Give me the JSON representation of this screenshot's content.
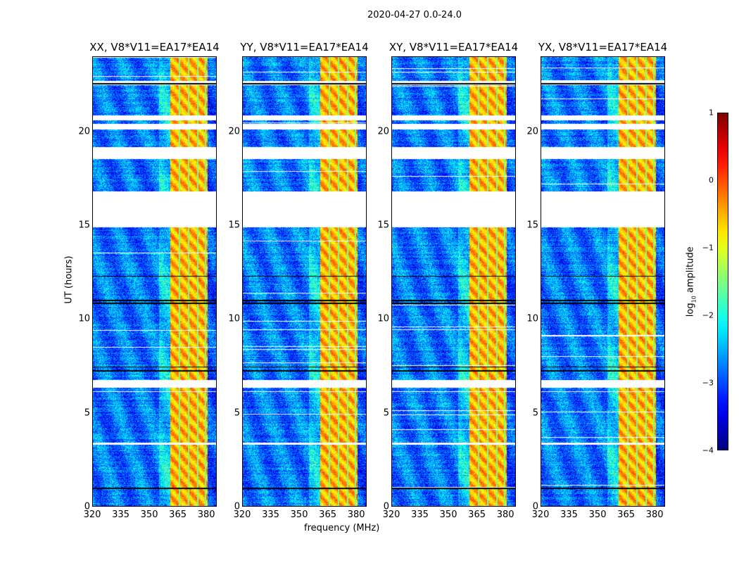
{
  "chart_data": {
    "type": "heatmap",
    "title": "2020-04-27 0.0-24.0",
    "xlabel": "frequency (MHz)",
    "ylabel": "UT (hours)",
    "xlim": [
      320,
      385.5
    ],
    "ylim": [
      0,
      24
    ],
    "xticks": [
      "320",
      "335",
      "350",
      "365",
      "380"
    ],
    "xtick_values": [
      320,
      335,
      350,
      365,
      380
    ],
    "yticks": [
      "0",
      "5",
      "10",
      "15",
      "20"
    ],
    "ytick_values": [
      0,
      5,
      10,
      15,
      20
    ],
    "panels": [
      {
        "title": "XX, V8*V11=EA17*EA14"
      },
      {
        "title": "YY, V8*V11=EA17*EA14"
      },
      {
        "title": "XY, V8*V11=EA17*EA14"
      },
      {
        "title": "YX, V8*V11=EA17*EA14"
      }
    ],
    "background_log_amplitude": -2.8,
    "rfi_band_mhz": [
      361,
      381
    ],
    "rfi_log_amplitude": -0.5,
    "rfi_channel_gaps_mhz": [
      365.8,
      370.6,
      375.5,
      379.8
    ],
    "flagged_hours": [
      [
        14.9,
        16.85
      ],
      [
        18.55,
        19.2
      ],
      [
        20.15,
        20.45
      ],
      [
        20.65,
        20.9
      ],
      [
        6.35,
        6.75
      ],
      [
        22.5,
        22.75
      ],
      [
        3.3,
        3.4
      ],
      [
        6.1,
        6.15
      ]
    ],
    "black_line_hours": [
      0.95,
      7.25,
      7.45,
      10.85,
      11.0,
      12.3,
      22.6
    ],
    "colorbar": {
      "label": "log10 amplitude",
      "label_main": "log",
      "label_sub": "10",
      "label_rest": " amplitude",
      "range": [
        -4,
        1
      ],
      "ticks": [
        "1",
        "0",
        "−1",
        "−2",
        "−3",
        "−4"
      ],
      "tick_values": [
        1,
        0,
        -1,
        -2,
        -3,
        -4
      ]
    }
  }
}
